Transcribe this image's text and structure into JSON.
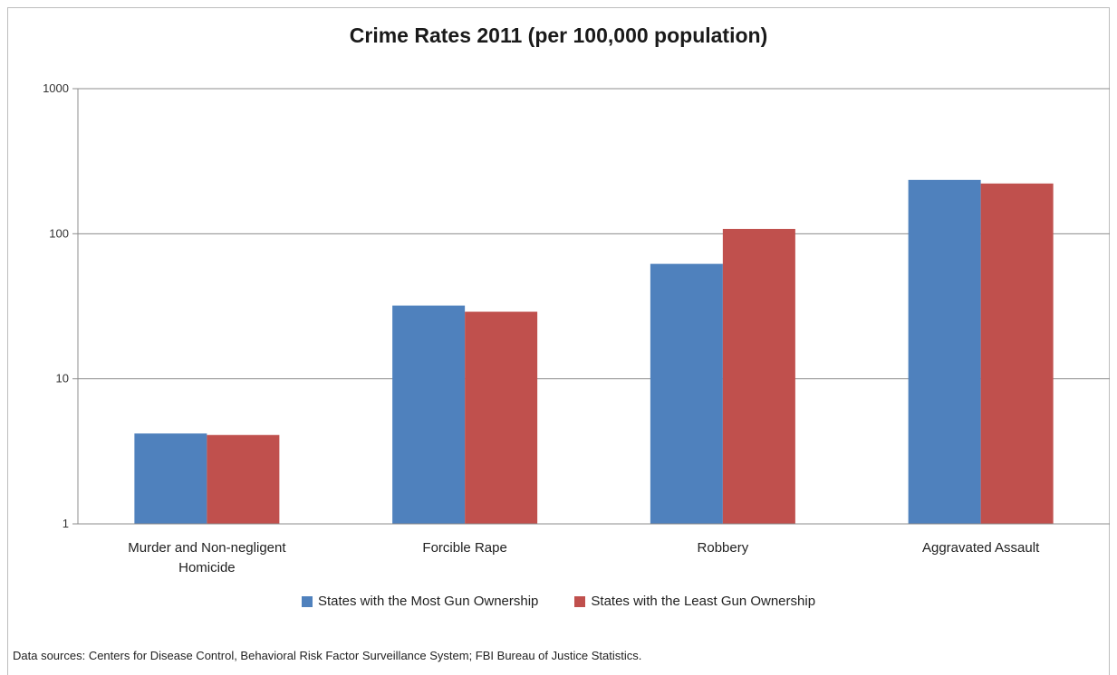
{
  "chart_data": {
    "type": "bar",
    "title": "Crime Rates 2011 (per 100,000 population)",
    "xlabel": "",
    "ylabel": "",
    "yscale": "log",
    "ylim": [
      1,
      1000
    ],
    "yticks": [
      "1",
      "10",
      "100",
      "1000"
    ],
    "grid": true,
    "legend_position": "bottom",
    "categories": [
      "Murder and Non-negligent Homicide",
      "Forcible Rape",
      "Robbery",
      "Aggravated Assault"
    ],
    "category_lines": [
      [
        "Murder and Non-negligent",
        "Homicide"
      ],
      [
        "Forcible Rape"
      ],
      [
        "Robbery"
      ],
      [
        "Aggravated Assault"
      ]
    ],
    "series": [
      {
        "name": "States with the Most Gun Ownership",
        "color": "#4f81bd",
        "values": [
          4.2,
          32,
          62,
          235
        ]
      },
      {
        "name": "States with the Least Gun Ownership",
        "color": "#c0504d",
        "values": [
          4.1,
          29,
          108,
          222
        ]
      }
    ],
    "source": "Data sources: Centers for Disease Control, Behavioral Risk Factor Surveillance System; FBI Bureau of Justice Statistics."
  }
}
